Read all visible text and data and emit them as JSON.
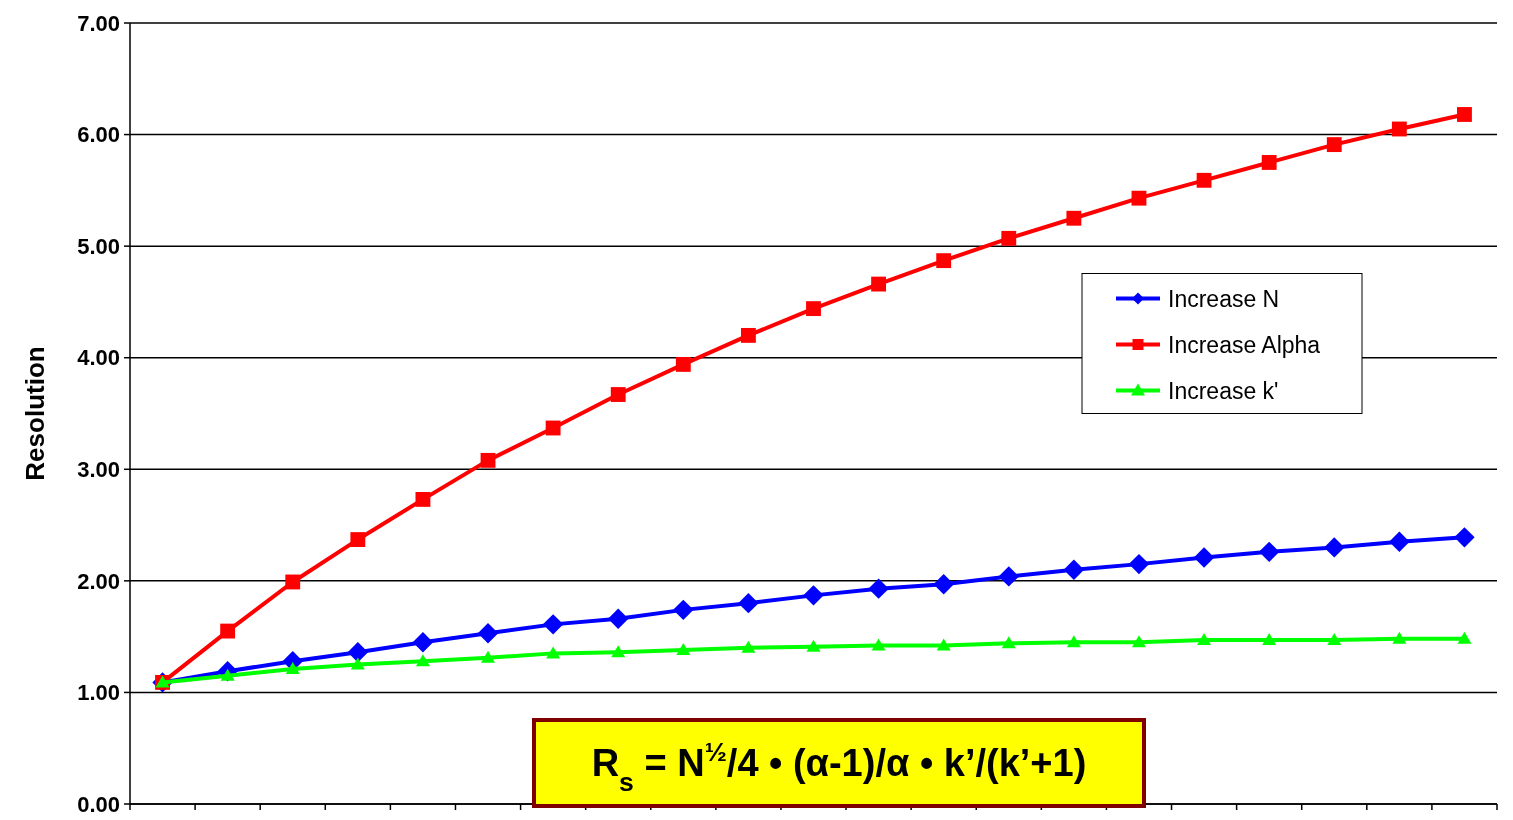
{
  "chart_data": {
    "type": "line",
    "ylabel": "Resolution",
    "categories": [
      null,
      null,
      null,
      null,
      null,
      null,
      null,
      null,
      null,
      null,
      null,
      null,
      null,
      null,
      null,
      null,
      null,
      null,
      null,
      null,
      null
    ],
    "series": [
      {
        "name": "Increase N",
        "color": "#0000ff",
        "marker": "diamond",
        "values": [
          1.09,
          1.19,
          1.28,
          1.36,
          1.45,
          1.53,
          1.61,
          1.66,
          1.74,
          1.8,
          1.87,
          1.93,
          1.97,
          2.04,
          2.1,
          2.15,
          2.21,
          2.26,
          2.3,
          2.35,
          2.39
        ]
      },
      {
        "name": "Increase Alpha",
        "color": "#ff0000",
        "marker": "square",
        "values": [
          1.09,
          1.55,
          1.99,
          2.37,
          2.73,
          3.08,
          3.37,
          3.67,
          3.94,
          4.2,
          4.44,
          4.66,
          4.87,
          5.07,
          5.25,
          5.43,
          5.59,
          5.75,
          5.91,
          6.05,
          6.18
        ]
      },
      {
        "name": "Increase k'",
        "color": "#00ff00",
        "marker": "triangle",
        "values": [
          1.09,
          1.15,
          1.21,
          1.25,
          1.28,
          1.31,
          1.35,
          1.36,
          1.38,
          1.4,
          1.41,
          1.42,
          1.42,
          1.44,
          1.45,
          1.45,
          1.47,
          1.47,
          1.47,
          1.48,
          1.48
        ]
      }
    ],
    "ylim": [
      0,
      7
    ],
    "yticks": [
      {
        "value": 0,
        "label": "0.00"
      },
      {
        "value": 1,
        "label": "1.00"
      },
      {
        "value": 2,
        "label": "2.00"
      },
      {
        "value": 3,
        "label": "3.00"
      },
      {
        "value": 4,
        "label": "4.00"
      },
      {
        "value": 5,
        "label": "5.00"
      },
      {
        "value": 6,
        "label": "6.00"
      },
      {
        "value": 7,
        "label": "7.00"
      }
    ],
    "grid": "y",
    "legend": "right",
    "line_style": "solid",
    "annotations": [
      "R$_{s}$ = N$^{½}$/4 • (α-1)/α • k’/(k’+1)"
    ]
  }
}
